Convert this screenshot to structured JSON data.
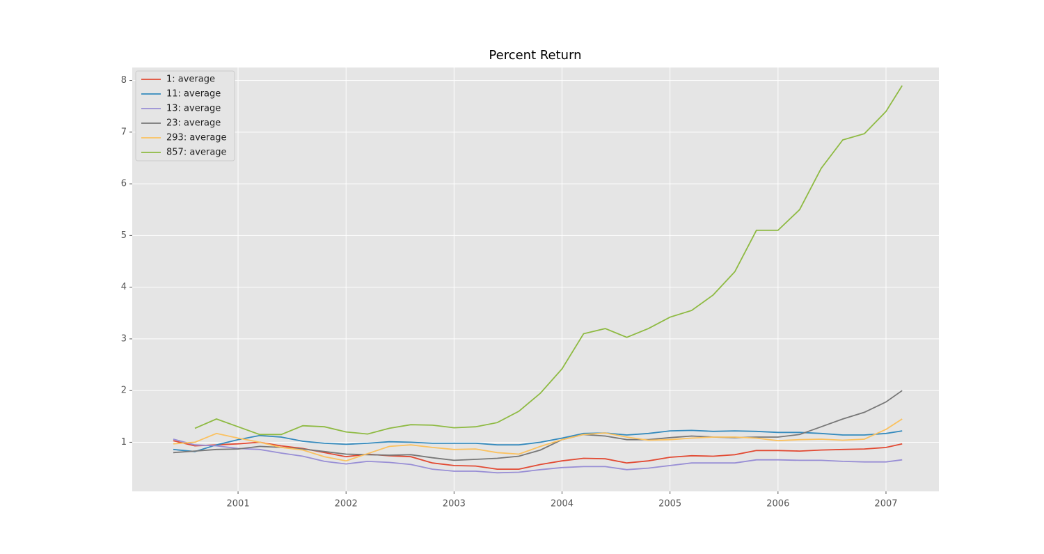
{
  "chart_data": {
    "type": "line",
    "title": "Percent Return",
    "x": [
      2000.4,
      2000.6,
      2000.8,
      2001.0,
      2001.2,
      2001.4,
      2001.6,
      2001.8,
      2002.0,
      2002.2,
      2002.4,
      2002.6,
      2002.8,
      2003.0,
      2003.2,
      2003.4,
      2003.6,
      2003.8,
      2004.0,
      2004.2,
      2004.4,
      2004.6,
      2004.8,
      2005.0,
      2005.2,
      2005.4,
      2005.6,
      2005.8,
      2006.0,
      2006.2,
      2006.4,
      2006.6,
      2006.8,
      2007.0,
      2007.15
    ],
    "series": [
      {
        "name": "1: average",
        "color": "#E24A33",
        "values": [
          1.03,
          0.93,
          0.95,
          0.97,
          1.0,
          0.93,
          0.88,
          0.8,
          0.72,
          0.77,
          0.74,
          0.72,
          0.6,
          0.55,
          0.54,
          0.48,
          0.48,
          0.57,
          0.64,
          0.69,
          0.68,
          0.6,
          0.64,
          0.71,
          0.74,
          0.73,
          0.76,
          0.84,
          0.84,
          0.83,
          0.85,
          0.86,
          0.87,
          0.9,
          0.97
        ]
      },
      {
        "name": "11: average",
        "color": "#348ABD",
        "values": [
          0.86,
          0.82,
          0.95,
          1.05,
          1.13,
          1.1,
          1.02,
          0.98,
          0.96,
          0.98,
          1.01,
          1.0,
          0.98,
          0.98,
          0.98,
          0.95,
          0.95,
          1.0,
          1.08,
          1.17,
          1.18,
          1.14,
          1.17,
          1.22,
          1.23,
          1.21,
          1.22,
          1.21,
          1.19,
          1.19,
          1.17,
          1.14,
          1.14,
          1.17,
          1.22
        ]
      },
      {
        "name": "13: average",
        "color": "#988ED5",
        "values": [
          1.06,
          0.95,
          0.93,
          0.88,
          0.86,
          0.79,
          0.73,
          0.63,
          0.58,
          0.63,
          0.61,
          0.57,
          0.48,
          0.44,
          0.44,
          0.41,
          0.42,
          0.47,
          0.51,
          0.53,
          0.53,
          0.47,
          0.5,
          0.55,
          0.6,
          0.6,
          0.6,
          0.66,
          0.66,
          0.65,
          0.65,
          0.63,
          0.62,
          0.62,
          0.66
        ]
      },
      {
        "name": "23: average",
        "color": "#777777",
        "values": [
          0.8,
          0.83,
          0.86,
          0.87,
          0.92,
          0.9,
          0.87,
          0.82,
          0.77,
          0.76,
          0.75,
          0.76,
          0.7,
          0.65,
          0.67,
          0.69,
          0.73,
          0.85,
          1.05,
          1.15,
          1.12,
          1.05,
          1.05,
          1.09,
          1.12,
          1.1,
          1.09,
          1.1,
          1.1,
          1.15,
          1.3,
          1.45,
          1.58,
          1.78,
          2.0
        ]
      },
      {
        "name": "293: average",
        "color": "#FBC15E",
        "values": [
          0.97,
          1.0,
          1.17,
          1.08,
          1.0,
          0.9,
          0.85,
          0.72,
          0.64,
          0.78,
          0.92,
          0.95,
          0.9,
          0.86,
          0.87,
          0.8,
          0.77,
          0.92,
          1.05,
          1.15,
          1.18,
          1.1,
          1.04,
          1.05,
          1.08,
          1.1,
          1.1,
          1.08,
          1.03,
          1.05,
          1.06,
          1.04,
          1.06,
          1.25,
          1.45
        ]
      },
      {
        "name": "857: average",
        "color": "#8EBA42",
        "values": [
          null,
          1.27,
          1.45,
          1.3,
          1.15,
          1.15,
          1.32,
          1.3,
          1.2,
          1.16,
          1.27,
          1.34,
          1.33,
          1.28,
          1.3,
          1.38,
          1.6,
          1.95,
          2.42,
          3.1,
          3.2,
          3.03,
          3.2,
          3.42,
          3.55,
          3.85,
          4.3,
          5.1,
          5.1,
          5.5,
          6.3,
          6.85,
          6.97,
          7.4,
          7.9
        ]
      }
    ],
    "xlim": [
      2000.02,
      2007.49
    ],
    "xticks": [
      2001,
      2002,
      2003,
      2004,
      2005,
      2006,
      2007
    ],
    "ylim": [
      0.05,
      8.25
    ],
    "yticks": [
      1,
      2,
      3,
      4,
      5,
      6,
      7,
      8
    ],
    "grid": true,
    "legend": "upper left"
  }
}
